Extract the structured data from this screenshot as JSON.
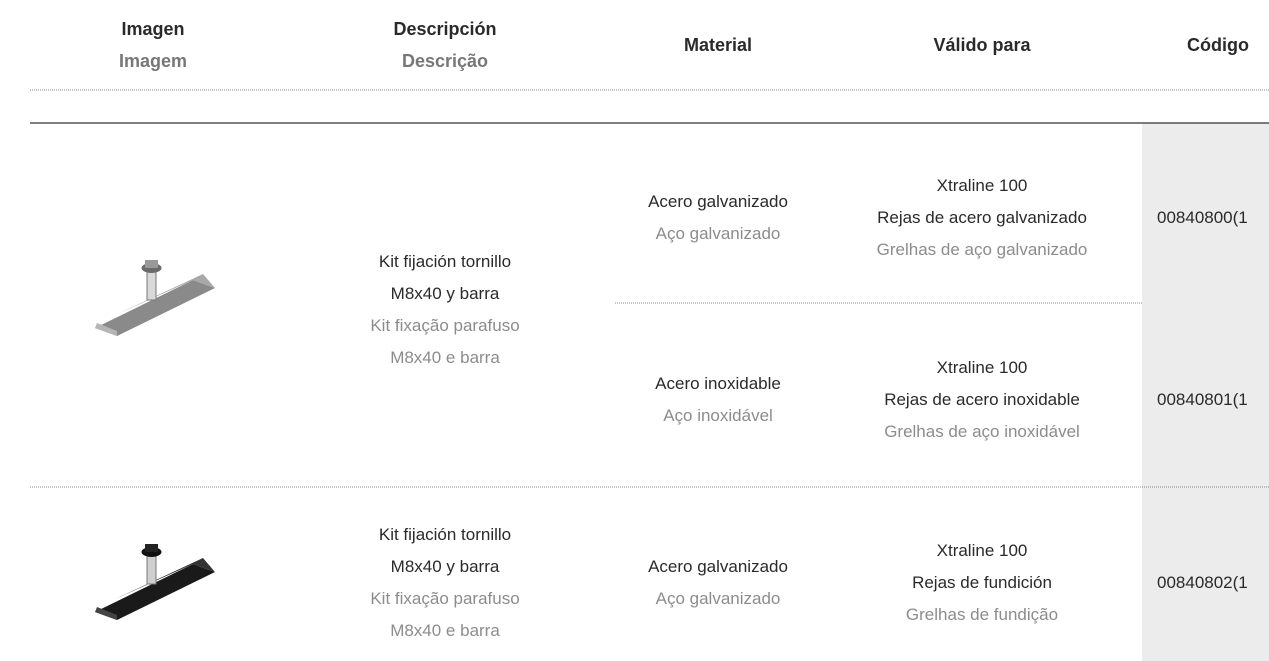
{
  "header": {
    "columns": [
      {
        "es": "Imagen",
        "pt": "Imagem"
      },
      {
        "es": "Descripción",
        "pt": "Descrição"
      },
      {
        "es": "Material"
      },
      {
        "es": "Válido para"
      },
      {
        "es": "Código"
      }
    ]
  },
  "rows": [
    {
      "description": {
        "es": [
          "Kit fijación tornillo",
          "M8x40 y barra"
        ],
        "pt": [
          "Kit fixação parafuso",
          "M8x40 e barra"
        ]
      },
      "variants": [
        {
          "material": {
            "es": "Acero galvanizado",
            "pt": "Aço galvanizado"
          },
          "valid_for": {
            "es": [
              "Xtraline 100",
              "Rejas de acero galvanizado"
            ],
            "pt": [
              "Grelhas de aço galvanizado"
            ]
          },
          "code": "00840800(1"
        },
        {
          "material": {
            "es": "Acero inoxidable",
            "pt": "Aço inoxidável"
          },
          "valid_for": {
            "es": [
              "Xtraline 100",
              "Rejas de acero inoxidable"
            ],
            "pt": [
              "Grelhas de aço inoxidável"
            ]
          },
          "code": "00840801(1"
        }
      ]
    },
    {
      "description": {
        "es": [
          "Kit fijación tornillo",
          "M8x40 y barra"
        ],
        "pt": [
          "Kit fixação parafuso",
          "M8x40 e barra"
        ]
      },
      "variants": [
        {
          "material": {
            "es": "Acero galvanizado",
            "pt": "Aço galvanizado"
          },
          "valid_for": {
            "es": [
              "Xtraline 100",
              "Rejas de fundición"
            ],
            "pt": [
              "Grelhas de fundição"
            ]
          },
          "code": "00840802(1"
        }
      ]
    }
  ]
}
